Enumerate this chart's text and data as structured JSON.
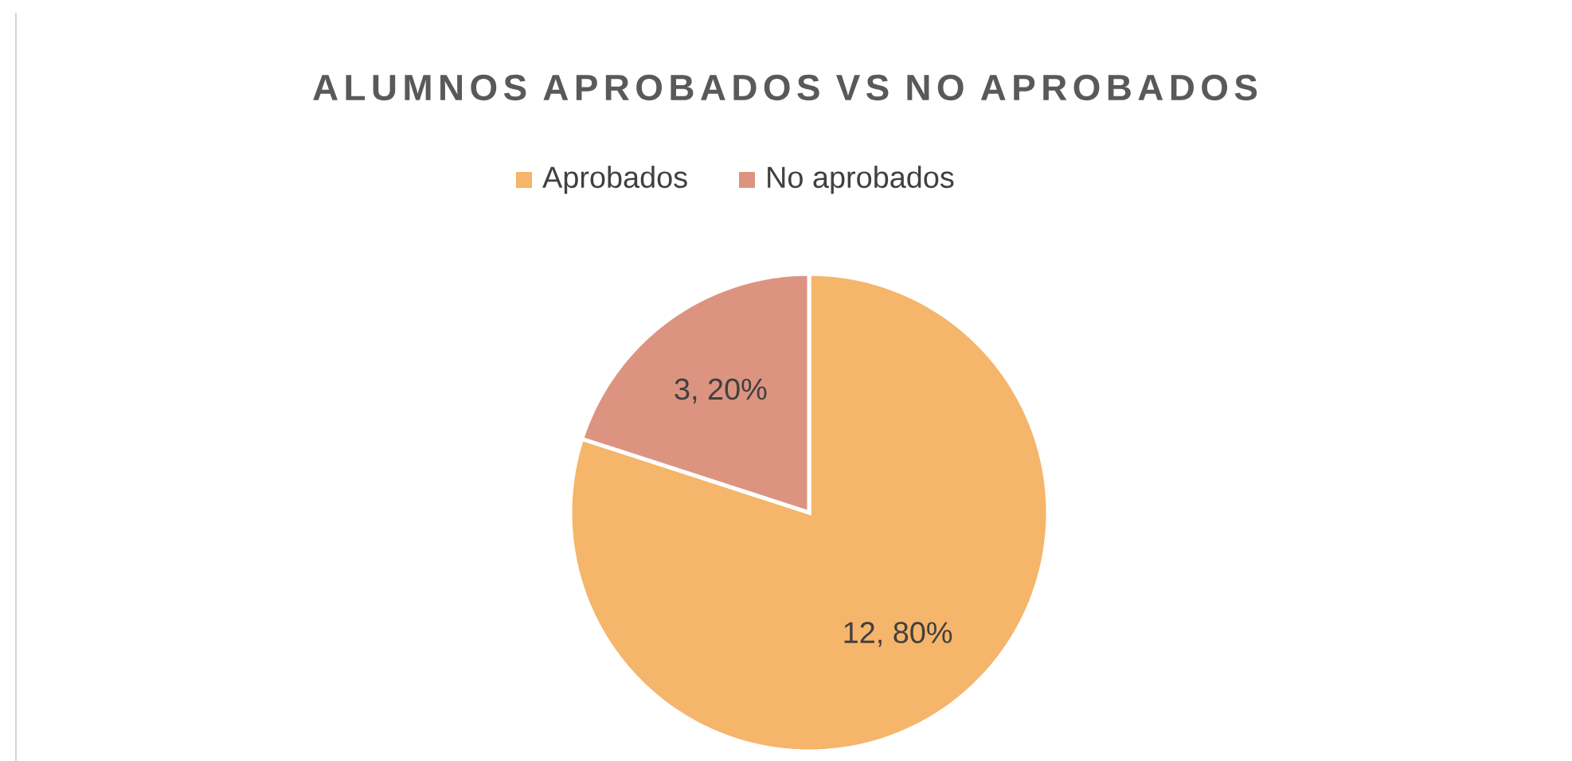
{
  "chart_data": {
    "type": "pie",
    "title": "ALUMNOS APROBADOS VS NO APROBADOS",
    "categories": [
      "Aprobados",
      "No aprobados"
    ],
    "values": [
      12,
      3
    ],
    "colors": [
      "#f5b56a",
      "#dc9480"
    ],
    "value_labels": [
      "12, 80%",
      "3, 20%"
    ],
    "legend": "top"
  }
}
